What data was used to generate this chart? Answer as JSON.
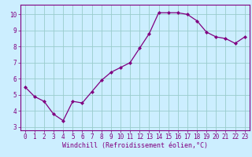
{
  "x": [
    0,
    1,
    2,
    3,
    4,
    5,
    6,
    7,
    8,
    9,
    10,
    11,
    12,
    13,
    14,
    15,
    16,
    17,
    18,
    19,
    20,
    21,
    22,
    23
  ],
  "y": [
    5.5,
    4.9,
    4.6,
    3.8,
    3.4,
    4.6,
    4.5,
    5.2,
    5.9,
    6.4,
    6.7,
    7.0,
    7.9,
    8.8,
    10.1,
    10.1,
    10.1,
    10.0,
    9.6,
    8.9,
    8.6,
    8.5,
    8.2,
    8.6
  ],
  "line_color": "#800080",
  "marker": "D",
  "marker_size": 2,
  "bg_color": "#cceeff",
  "grid_color": "#99cccc",
  "axis_color": "#800080",
  "xlabel": "Windchill (Refroidissement éolien,°C)",
  "xlabel_fontsize": 6,
  "xlim": [
    -0.5,
    23.5
  ],
  "ylim": [
    2.8,
    10.6
  ],
  "yticks": [
    3,
    4,
    5,
    6,
    7,
    8,
    9,
    10
  ],
  "xticks": [
    0,
    1,
    2,
    3,
    4,
    5,
    6,
    7,
    8,
    9,
    10,
    11,
    12,
    13,
    14,
    15,
    16,
    17,
    18,
    19,
    20,
    21,
    22,
    23
  ],
  "tick_fontsize": 5.5,
  "tick_color": "#800080",
  "linewidth": 0.9
}
